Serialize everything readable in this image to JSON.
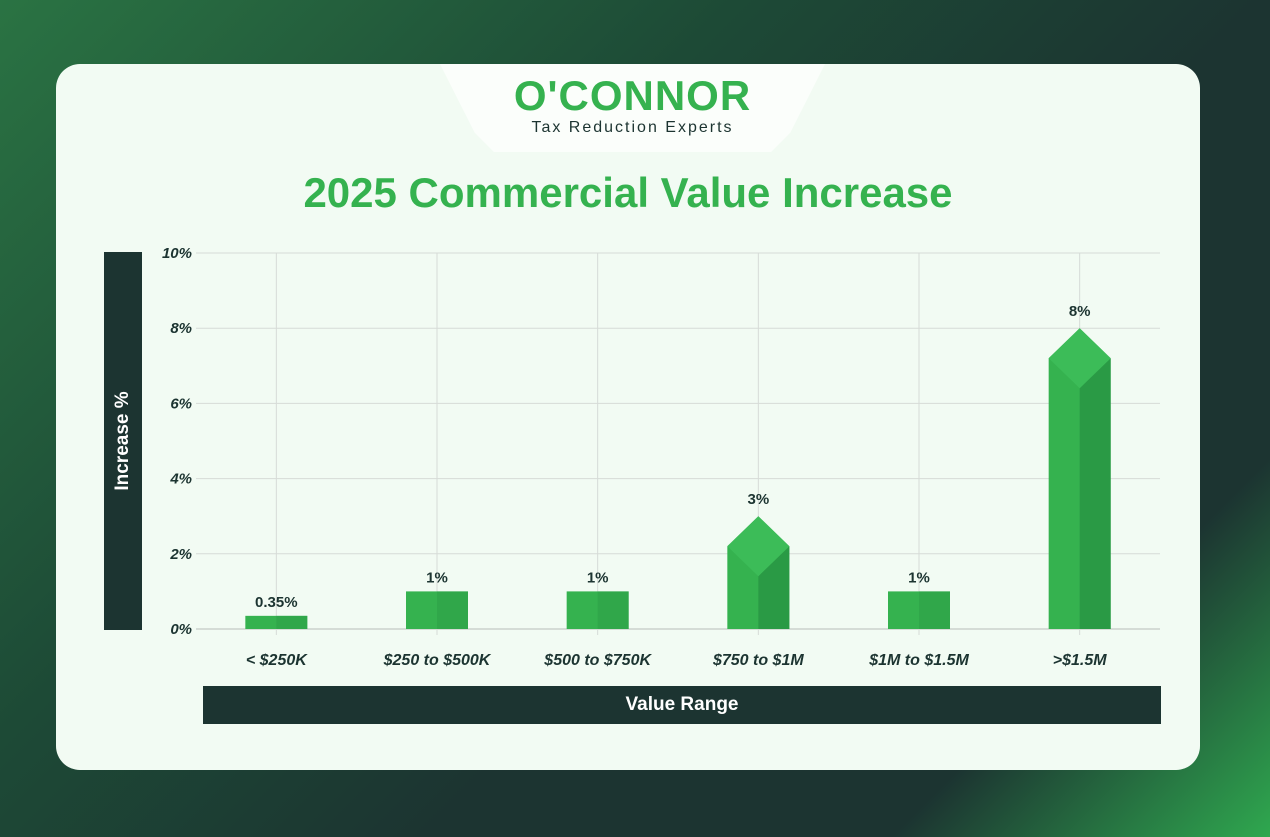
{
  "brand": {
    "name": "O'CONNOR",
    "tagline": "Tax Reduction Experts"
  },
  "chart_data": {
    "type": "bar",
    "title": "2025 Commercial Value Increase",
    "xlabel": "Value Range",
    "ylabel": "Increase %",
    "categories": [
      "< $250K",
      "$250 to $500K",
      "$500 to $750K",
      "$750 to $1M",
      "$1M to $1.5M",
      ">$1.5M"
    ],
    "values": [
      0.35,
      1,
      1,
      3,
      1,
      8
    ],
    "data_labels": [
      "0.35%",
      "1%",
      "1%",
      "3%",
      "1%",
      "8%"
    ],
    "yticks": [
      "0%",
      "2%",
      "4%",
      "6%",
      "8%",
      "10%"
    ],
    "ylim": [
      0,
      10
    ],
    "grid": true,
    "colors": {
      "bar": "#35b24f",
      "bar_dark": "#2a9a45",
      "axis_box": "#1c3431"
    }
  }
}
